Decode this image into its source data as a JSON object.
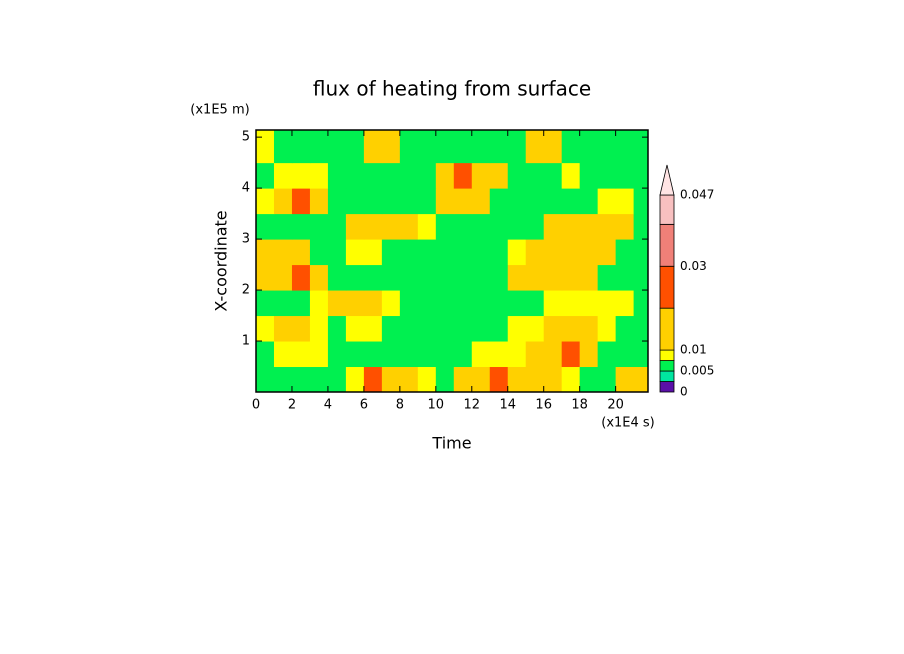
{
  "chart_data": {
    "type": "contour",
    "title": "flux of heating from surface",
    "x_label": "Time",
    "y_label": "X-coordinate",
    "x_unit": "(x1E4 s)",
    "y_unit": "(x1E5 m)",
    "xlim": [
      0,
      21.8
    ],
    "ylim": [
      0,
      5.14
    ],
    "xticks": [
      0,
      2,
      4,
      6,
      8,
      10,
      12,
      14,
      16,
      18,
      20
    ],
    "yticks": [
      1,
      2,
      3,
      4,
      5
    ],
    "x_edges": [
      0,
      1,
      2,
      3,
      4,
      5,
      6,
      7,
      8,
      9,
      10,
      11,
      12,
      13,
      14,
      15,
      16,
      17,
      18,
      19,
      20,
      21,
      21.8
    ],
    "y_edges": [
      0,
      0.5,
      1,
      1.5,
      2,
      2.5,
      3,
      3.5,
      4,
      4.5,
      5.14
    ],
    "z": [
      [
        0.007,
        0.007,
        0.007,
        0.007,
        0.007,
        0.009,
        0.025,
        0.015,
        0.015,
        0.009,
        0.007,
        0.015,
        0.015,
        0.025,
        0.015,
        0.015,
        0.015,
        0.009,
        0.007,
        0.007,
        0.015,
        0.015
      ],
      [
        0.007,
        0.009,
        0.009,
        0.009,
        0.007,
        0.007,
        0.007,
        0.007,
        0.007,
        0.007,
        0.007,
        0.007,
        0.009,
        0.009,
        0.009,
        0.015,
        0.015,
        0.025,
        0.015,
        0.007,
        0.007,
        0.007
      ],
      [
        0.009,
        0.015,
        0.015,
        0.009,
        0.007,
        0.009,
        0.009,
        0.007,
        0.007,
        0.007,
        0.007,
        0.007,
        0.007,
        0.007,
        0.009,
        0.009,
        0.015,
        0.015,
        0.015,
        0.009,
        0.007,
        0.007
      ],
      [
        0.007,
        0.007,
        0.007,
        0.009,
        0.015,
        0.015,
        0.015,
        0.009,
        0.007,
        0.007,
        0.007,
        0.007,
        0.007,
        0.007,
        0.007,
        0.007,
        0.009,
        0.009,
        0.009,
        0.009,
        0.009,
        0.007
      ],
      [
        0.015,
        0.015,
        0.025,
        0.015,
        0.007,
        0.007,
        0.007,
        0.007,
        0.007,
        0.007,
        0.007,
        0.007,
        0.007,
        0.007,
        0.015,
        0.015,
        0.015,
        0.015,
        0.015,
        0.007,
        0.007,
        0.007
      ],
      [
        0.015,
        0.015,
        0.015,
        0.007,
        0.007,
        0.009,
        0.009,
        0.007,
        0.007,
        0.007,
        0.007,
        0.007,
        0.007,
        0.007,
        0.009,
        0.015,
        0.015,
        0.015,
        0.015,
        0.015,
        0.007,
        0.007
      ],
      [
        0.007,
        0.007,
        0.007,
        0.007,
        0.007,
        0.015,
        0.015,
        0.015,
        0.015,
        0.009,
        0.007,
        0.007,
        0.007,
        0.007,
        0.007,
        0.007,
        0.015,
        0.015,
        0.015,
        0.015,
        0.015,
        0.007
      ],
      [
        0.009,
        0.015,
        0.025,
        0.015,
        0.007,
        0.007,
        0.007,
        0.007,
        0.007,
        0.007,
        0.015,
        0.015,
        0.015,
        0.007,
        0.007,
        0.007,
        0.007,
        0.007,
        0.007,
        0.009,
        0.009,
        0.007
      ],
      [
        0.007,
        0.009,
        0.009,
        0.009,
        0.007,
        0.007,
        0.007,
        0.007,
        0.007,
        0.007,
        0.015,
        0.025,
        0.015,
        0.015,
        0.007,
        0.007,
        0.007,
        0.009,
        0.007,
        0.007,
        0.007,
        0.007
      ],
      [
        0.009,
        0.007,
        0.007,
        0.007,
        0.007,
        0.007,
        0.015,
        0.015,
        0.007,
        0.007,
        0.007,
        0.007,
        0.007,
        0.007,
        0.007,
        0.015,
        0.015,
        0.007,
        0.007,
        0.007,
        0.007,
        0.007
      ]
    ],
    "colorbar": {
      "lim": [
        0,
        0.047
      ],
      "ticks": [
        0,
        0.005,
        0.01,
        0.03,
        0.047
      ],
      "levels": [
        0,
        0.0025,
        0.005,
        0.0075,
        0.01,
        0.02,
        0.03,
        0.04,
        0.047
      ],
      "colors": [
        "#5a10a8",
        "#00e6a0",
        "#00f050",
        "#ffff00",
        "#ffd000",
        "#ff5000",
        "#f08078",
        "#f8c0c0",
        "#ffe4e4"
      ]
    }
  }
}
